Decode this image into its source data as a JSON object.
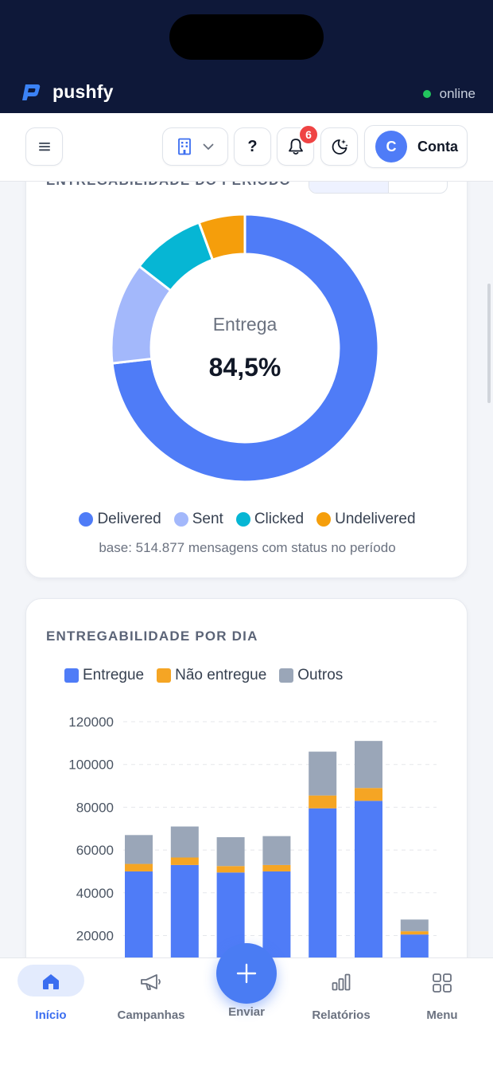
{
  "brand": {
    "name": "pushfy",
    "status": "online"
  },
  "toolbar": {
    "help_label": "?",
    "notifications_count": "6",
    "account_initial": "C",
    "account_label": "Conta"
  },
  "delivery_card": {
    "title": "ENTREGABILIDADE DO PERÍODO",
    "center_label": "Entrega",
    "center_value": "84,5%",
    "legend": [
      {
        "label": "Delivered",
        "color": "#4f7cf7"
      },
      {
        "label": "Sent",
        "color": "#a3b8fb"
      },
      {
        "label": "Clicked",
        "color": "#06b6d4"
      },
      {
        "label": "Undelivered",
        "color": "#f59e0b"
      }
    ],
    "base_note": "base: 514.877 mensagens com status no período"
  },
  "daily_card": {
    "title": "ENTREGABILIDADE POR DIA",
    "legend": [
      {
        "label": "Entregue",
        "color": "#4f7cf7"
      },
      {
        "label": "Não entregue",
        "color": "#f5a524"
      },
      {
        "label": "Outros",
        "color": "#9aa6b8"
      }
    ]
  },
  "chart_data": [
    {
      "type": "pie",
      "labels": [
        "Delivered",
        "Sent",
        "Clicked",
        "Undelivered"
      ],
      "values": [
        65.5,
        11.0,
        8.0,
        5.0
      ],
      "colors": [
        "#4f7cf7",
        "#a3b8fb",
        "#06b6d4",
        "#f59e0b"
      ],
      "center_label": "Entrega",
      "center_value": "84,5%",
      "legend_position": "bottom"
    },
    {
      "type": "bar",
      "stacked": true,
      "title": "ENTREGABILIDADE POR DIA",
      "categories": [
        "",
        "",
        "",
        "",
        "",
        "",
        ""
      ],
      "series": [
        {
          "name": "Entregue",
          "values": [
            50000,
            53000,
            49500,
            50000,
            79500,
            83000,
            20500
          ]
        },
        {
          "name": "Não entregue",
          "values": [
            3500,
            3500,
            3000,
            3000,
            6000,
            6000,
            1500
          ]
        },
        {
          "name": "Outros",
          "values": [
            13500,
            14500,
            13500,
            13500,
            20500,
            22000,
            5500
          ]
        }
      ],
      "yticks": [
        "120000",
        "100000",
        "80000",
        "60000",
        "40000",
        "20000"
      ],
      "ylim": [
        0,
        120000
      ],
      "grid": true,
      "legend_position": "top-left"
    }
  ],
  "nav": {
    "home": "Início",
    "campaigns": "Campanhas",
    "send": "Enviar",
    "reports": "Relatórios",
    "menu": "Menu"
  }
}
